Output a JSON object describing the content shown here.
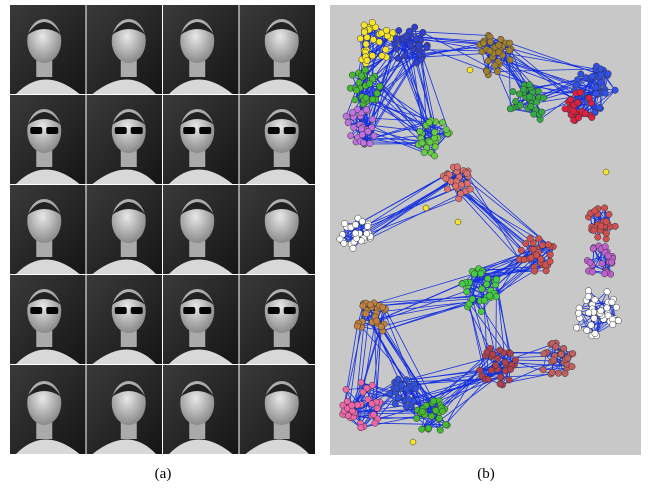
{
  "captions": {
    "a": "(a)",
    "b": "(b)"
  }
}
